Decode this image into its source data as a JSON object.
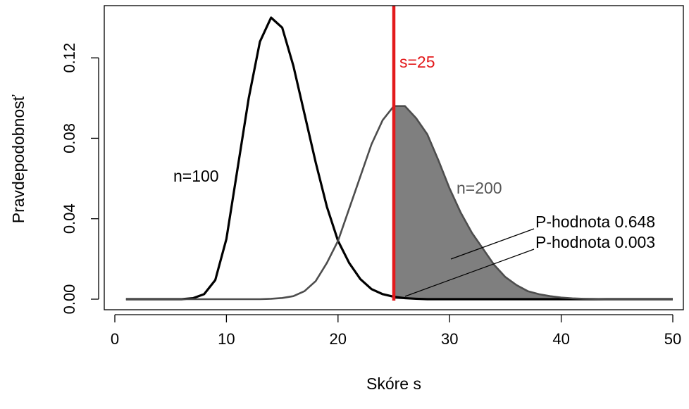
{
  "chart_data": {
    "type": "line",
    "title": "",
    "xlabel": "Skóre s",
    "ylabel": "Pravdepodobnosť",
    "xlim": [
      0,
      50
    ],
    "ylim": [
      0,
      0.14
    ],
    "x_ticks": [
      0,
      10,
      20,
      30,
      40,
      50
    ],
    "x_tick_labels": [
      "0",
      "10",
      "20",
      "30",
      "40",
      "50"
    ],
    "y_ticks": [
      0,
      0.04,
      0.08,
      0.12
    ],
    "y_tick_labels": [
      "0.00",
      "0.04",
      "0.08",
      "0.12"
    ],
    "grid": false,
    "x": [
      1,
      2,
      3,
      4,
      5,
      6,
      7,
      8,
      9,
      10,
      11,
      12,
      13,
      14,
      15,
      16,
      17,
      18,
      19,
      20,
      21,
      22,
      23,
      24,
      25,
      26,
      27,
      28,
      29,
      30,
      31,
      32,
      33,
      34,
      35,
      36,
      37,
      38,
      39,
      40,
      41,
      42,
      43,
      44,
      45,
      46,
      47,
      48,
      49,
      50
    ],
    "series": [
      {
        "name": "n=100",
        "color": "#000000",
        "values": [
          0,
          0,
          0,
          0,
          0,
          0,
          0.0005,
          0.0025,
          0.0095,
          0.03,
          0.065,
          0.1,
          0.128,
          0.14,
          0.135,
          0.116,
          0.092,
          0.068,
          0.046,
          0.029,
          0.018,
          0.01,
          0.005,
          0.0025,
          0.0012,
          0.0005,
          0.0002,
          0,
          0,
          0,
          0,
          0,
          0,
          0,
          0,
          0,
          0,
          0,
          0,
          0,
          0,
          0,
          0,
          0,
          0,
          0,
          0,
          0,
          0,
          0
        ]
      },
      {
        "name": "n=200",
        "color": "#4d4d4d",
        "values": [
          0,
          0,
          0,
          0,
          0,
          0,
          0,
          0,
          0,
          0,
          0,
          0,
          0,
          0.0002,
          0.0006,
          0.0015,
          0.004,
          0.009,
          0.018,
          0.029,
          0.045,
          0.061,
          0.077,
          0.089,
          0.096,
          0.096,
          0.09,
          0.082,
          0.069,
          0.055,
          0.043,
          0.033,
          0.025,
          0.017,
          0.011,
          0.007,
          0.004,
          0.0025,
          0.0015,
          0.0008,
          0.0004,
          0.0002,
          0.0001,
          0,
          0,
          0,
          0,
          0,
          0,
          0
        ]
      }
    ],
    "threshold": {
      "x": 25,
      "label": "s=25",
      "color": "#e31a1c"
    },
    "shaded_region": {
      "series": "n=200",
      "from_x": 25,
      "color": "#7f7f7f"
    },
    "annotations": {
      "n100_label": "n=100",
      "n200_label": "n=200",
      "p_value_n200": "P-hodnota 0.648",
      "p_value_n100": "P-hodnota 0.003"
    }
  }
}
